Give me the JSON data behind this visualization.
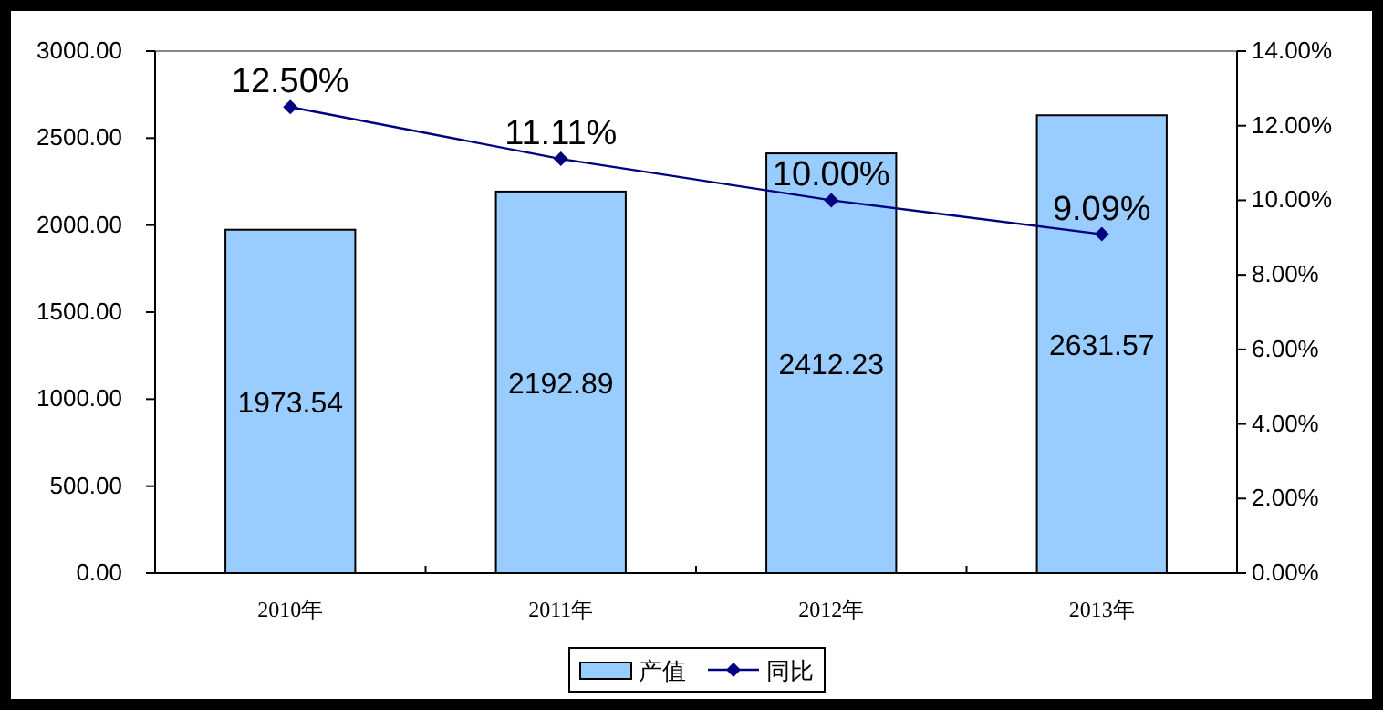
{
  "chart_data": {
    "type": "bar",
    "categories": [
      "2010年",
      "2011年",
      "2012年",
      "2013年"
    ],
    "series": [
      {
        "name": "产值",
        "color": "#99ccff",
        "values": [
          1973.54,
          2192.89,
          2412.23,
          2631.57
        ],
        "value_labels": [
          "1973.54",
          "2192.89",
          "2412.23",
          "2631.57"
        ]
      },
      {
        "name": "同比",
        "type": "line",
        "axis": "y2",
        "color": "#000080",
        "marker": "diamond",
        "values": [
          12.5,
          11.11,
          10.0,
          9.09
        ],
        "value_labels": [
          "12.50%",
          "11.11%",
          "10.00%",
          "9.09%"
        ]
      }
    ],
    "ylim": [
      0,
      3000
    ],
    "yticks": [
      {
        "value": 0,
        "label": "0.00"
      },
      {
        "value": 500,
        "label": "500.00"
      },
      {
        "value": 1000,
        "label": "1000.00"
      },
      {
        "value": 1500,
        "label": "1500.00"
      },
      {
        "value": 2000,
        "label": "2000.00"
      },
      {
        "value": 2500,
        "label": "2500.00"
      },
      {
        "value": 3000,
        "label": "3000.00"
      }
    ],
    "y2lim": [
      0,
      14
    ],
    "y2ticks": [
      {
        "value": 0,
        "label": "0.00%"
      },
      {
        "value": 2,
        "label": "2.00%"
      },
      {
        "value": 4,
        "label": "4.00%"
      },
      {
        "value": 6,
        "label": "6.00%"
      },
      {
        "value": 8,
        "label": "8.00%"
      },
      {
        "value": 10,
        "label": "10.00%"
      },
      {
        "value": 12,
        "label": "12.00%"
      },
      {
        "value": 14,
        "label": "14.00%"
      }
    ],
    "legend": "bottom",
    "grid": false
  }
}
